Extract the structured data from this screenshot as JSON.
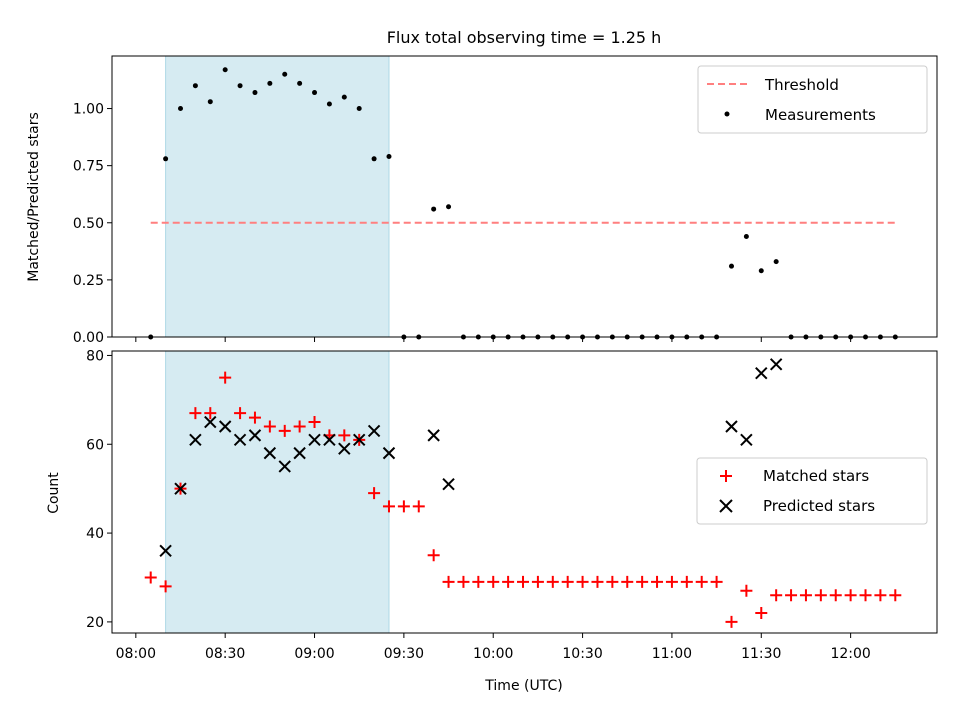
{
  "chart_data": [
    {
      "type": "scatter",
      "title": "Flux total observing time = 1.25 h",
      "xlabel": "",
      "ylabel": "Matched/Predicted stars",
      "ylim": [
        0,
        1.23
      ],
      "yticks": [
        0.0,
        0.25,
        0.5,
        0.75,
        1.0
      ],
      "ytick_labels": [
        "0.00",
        "0.25",
        "0.50",
        "0.75",
        "1.00"
      ],
      "shaded_span": {
        "start": "08:10",
        "end": "09:25",
        "color": "#add8e6"
      },
      "legend_position": "upper right",
      "series": [
        {
          "name": "Threshold",
          "kind": "dashed-line",
          "color": "#ff7f7f",
          "x": [
            "08:05",
            "12:15"
          ],
          "y": [
            0.5,
            0.5
          ]
        },
        {
          "name": "Measurements",
          "kind": "dot",
          "color": "#000000",
          "x": [
            "08:05",
            "08:10",
            "08:15",
            "08:20",
            "08:25",
            "08:30",
            "08:35",
            "08:40",
            "08:45",
            "08:50",
            "08:55",
            "09:00",
            "09:05",
            "09:10",
            "09:15",
            "09:20",
            "09:25",
            "09:30",
            "09:35",
            "09:40",
            "09:45",
            "09:50",
            "09:55",
            "10:00",
            "10:05",
            "10:10",
            "10:15",
            "10:20",
            "10:25",
            "10:30",
            "10:35",
            "10:40",
            "10:45",
            "10:50",
            "10:55",
            "11:00",
            "11:05",
            "11:10",
            "11:15",
            "11:20",
            "11:25",
            "11:30",
            "11:35",
            "11:40",
            "11:45",
            "11:50",
            "11:55",
            "12:00",
            "12:05",
            "12:10",
            "12:15"
          ],
          "y": [
            0.0,
            0.78,
            1.0,
            1.1,
            1.03,
            1.17,
            1.1,
            1.07,
            1.11,
            1.15,
            1.11,
            1.07,
            1.02,
            1.05,
            1.0,
            0.78,
            0.79,
            0.0,
            0.0,
            0.56,
            0.57,
            0.0,
            0.0,
            0.0,
            0.0,
            0.0,
            0.0,
            0.0,
            0.0,
            0.0,
            0.0,
            0.0,
            0.0,
            0.0,
            0.0,
            0.0,
            0.0,
            0.0,
            0.0,
            0.31,
            0.44,
            0.29,
            0.33,
            0.0,
            0.0,
            0.0,
            0.0,
            0.0,
            0.0,
            0.0,
            0.0
          ]
        }
      ]
    },
    {
      "type": "scatter",
      "title": "",
      "xlabel": "Time (UTC)",
      "ylabel": "Count",
      "ylim": [
        17.5,
        81
      ],
      "yticks": [
        20,
        40,
        60,
        80
      ],
      "ytick_labels": [
        "20",
        "40",
        "60",
        "80"
      ],
      "xticks": [
        "08:00",
        "08:30",
        "09:00",
        "09:30",
        "10:00",
        "10:30",
        "11:00",
        "11:30",
        "12:00"
      ],
      "xlim": [
        "07:52",
        "12:29"
      ],
      "shaded_span": {
        "start": "08:10",
        "end": "09:25",
        "color": "#add8e6"
      },
      "legend_position": "center right",
      "series": [
        {
          "name": "Matched stars",
          "marker": "plus",
          "color": "#ff0000",
          "x": [
            "08:05",
            "08:10",
            "08:15",
            "08:20",
            "08:25",
            "08:30",
            "08:35",
            "08:40",
            "08:45",
            "08:50",
            "08:55",
            "09:00",
            "09:05",
            "09:10",
            "09:15",
            "09:20",
            "09:25",
            "09:30",
            "09:35",
            "09:40",
            "09:45",
            "09:50",
            "09:55",
            "10:00",
            "10:05",
            "10:10",
            "10:15",
            "10:20",
            "10:25",
            "10:30",
            "10:35",
            "10:40",
            "10:45",
            "10:50",
            "10:55",
            "11:00",
            "11:05",
            "11:10",
            "11:15",
            "11:20",
            "11:25",
            "11:30",
            "11:35",
            "11:40",
            "11:45",
            "11:50",
            "11:55",
            "12:00",
            "12:05",
            "12:10",
            "12:15"
          ],
          "y": [
            30,
            28,
            50,
            67,
            67,
            75,
            67,
            66,
            64,
            63,
            64,
            65,
            62,
            62,
            61,
            49,
            46,
            46,
            46,
            35,
            29,
            29,
            29,
            29,
            29,
            29,
            29,
            29,
            29,
            29,
            29,
            29,
            29,
            29,
            29,
            29,
            29,
            29,
            29,
            20,
            27,
            22,
            26,
            26,
            26,
            26,
            26,
            26,
            26,
            26,
            26
          ]
        },
        {
          "name": "Predicted stars",
          "marker": "x",
          "color": "#000000",
          "x": [
            "08:10",
            "08:15",
            "08:20",
            "08:25",
            "08:30",
            "08:35",
            "08:40",
            "08:45",
            "08:50",
            "08:55",
            "09:00",
            "09:05",
            "09:10",
            "09:15",
            "09:20",
            "09:25",
            "09:40",
            "09:45",
            "11:20",
            "11:25",
            "11:30",
            "11:35"
          ],
          "y": [
            36,
            50,
            61,
            65,
            64,
            61,
            62,
            58,
            55,
            58,
            61,
            61,
            59,
            61,
            63,
            58,
            62,
            51,
            64,
            61,
            76,
            78
          ]
        }
      ]
    }
  ]
}
